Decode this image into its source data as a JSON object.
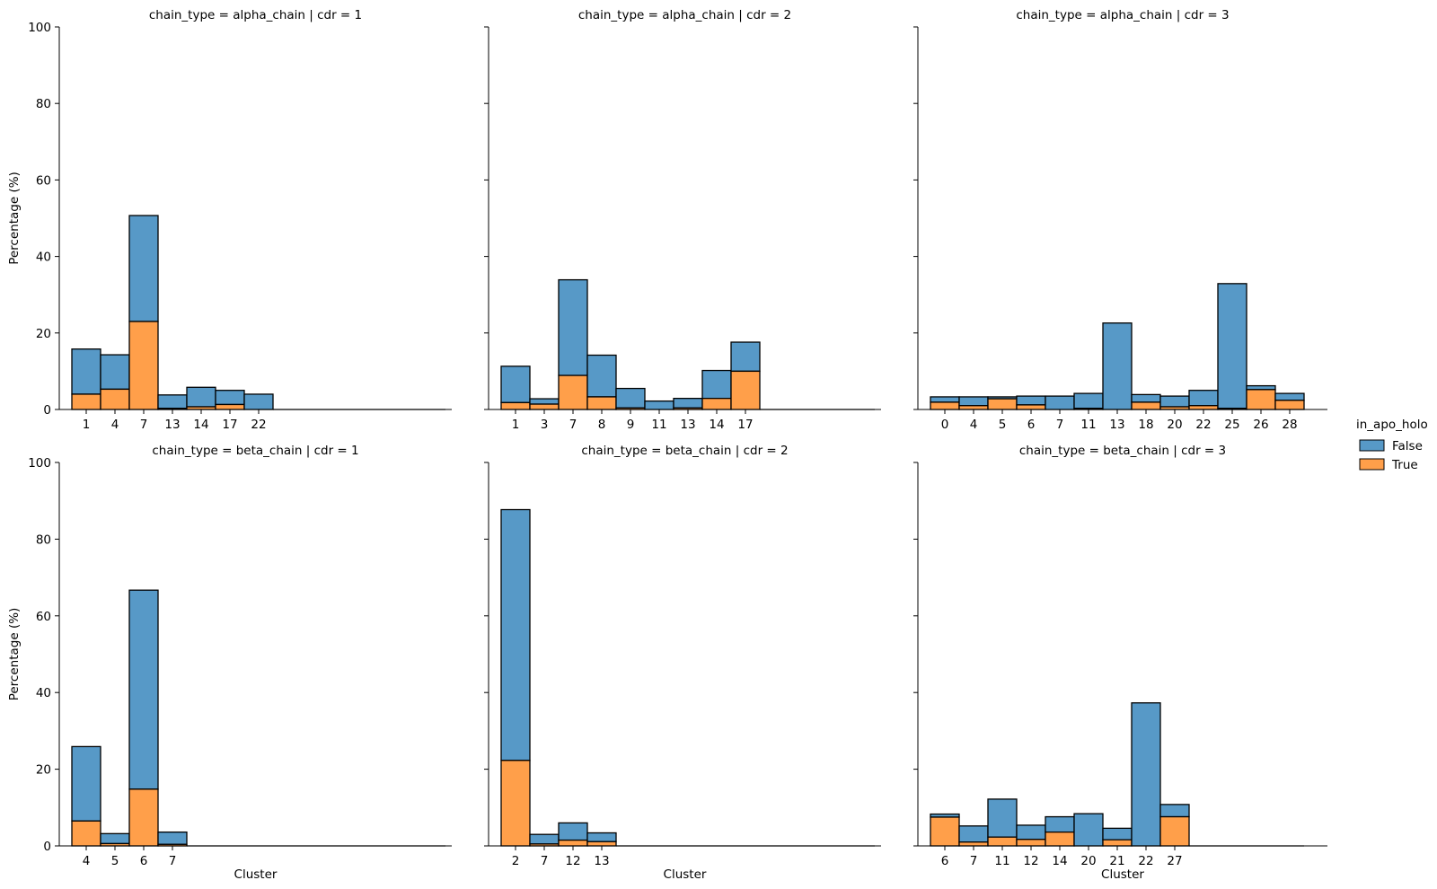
{
  "legend": {
    "title": "in_apo_holo",
    "entries": [
      {
        "label": "False",
        "color": "#5799c7"
      },
      {
        "label": "True",
        "color": "#ff9f4a"
      }
    ],
    "placement": "right-center"
  },
  "chart_data": [
    {
      "type": "bar",
      "stacked": true,
      "title": "chain_type = alpha_chain | cdr = 1",
      "xlabel": "",
      "ylabel": "Percentage (%)",
      "ylim": [
        0,
        100
      ],
      "yticks": [
        0,
        20,
        40,
        60,
        80,
        100
      ],
      "categories": [
        "1",
        "4",
        "7",
        "13",
        "14",
        "17",
        "22"
      ],
      "empty_slots": 6,
      "series": [
        {
          "name": "True",
          "values": [
            4.0,
            5.3,
            23.0,
            0.3,
            0.7,
            1.3,
            0.0
          ]
        },
        {
          "name": "False",
          "values": [
            11.8,
            9.0,
            27.7,
            3.5,
            5.1,
            3.7,
            4.0
          ]
        }
      ]
    },
    {
      "type": "bar",
      "stacked": true,
      "title": "chain_type = alpha_chain | cdr = 2",
      "xlabel": "",
      "ylabel": "",
      "ylim": [
        0,
        100
      ],
      "yticks": [
        0,
        20,
        40,
        60,
        80,
        100
      ],
      "categories": [
        "1",
        "3",
        "7",
        "8",
        "9",
        "11",
        "13",
        "14",
        "17"
      ],
      "empty_slots": 4,
      "series": [
        {
          "name": "True",
          "values": [
            1.8,
            1.4,
            8.9,
            3.3,
            0.4,
            0.0,
            0.4,
            2.9,
            10.0
          ]
        },
        {
          "name": "False",
          "values": [
            9.5,
            1.4,
            25.0,
            10.9,
            5.1,
            2.2,
            2.5,
            7.3,
            7.6
          ]
        }
      ]
    },
    {
      "type": "bar",
      "stacked": true,
      "title": "chain_type = alpha_chain | cdr = 3",
      "xlabel": "",
      "ylabel": "",
      "ylim": [
        0,
        100
      ],
      "yticks": [
        0,
        20,
        40,
        60,
        80,
        100
      ],
      "categories": [
        "0",
        "4",
        "5",
        "6",
        "7",
        "11",
        "13",
        "18",
        "20",
        "22",
        "25",
        "26",
        "28"
      ],
      "empty_slots": 0,
      "series": [
        {
          "name": "True",
          "values": [
            1.9,
            1.0,
            2.8,
            1.2,
            0.0,
            0.3,
            0.0,
            1.9,
            0.7,
            1.0,
            0.3,
            5.2,
            2.4
          ]
        },
        {
          "name": "False",
          "values": [
            1.4,
            2.3,
            0.5,
            2.3,
            3.5,
            3.9,
            22.6,
            2.0,
            2.8,
            4.0,
            32.6,
            1.0,
            1.8
          ]
        }
      ]
    },
    {
      "type": "bar",
      "stacked": true,
      "title": "chain_type = beta_chain | cdr = 1",
      "xlabel": "Cluster",
      "ylabel": "Percentage (%)",
      "ylim": [
        0,
        100
      ],
      "yticks": [
        0,
        20,
        40,
        60,
        80,
        100
      ],
      "categories": [
        "4",
        "5",
        "6",
        "7"
      ],
      "empty_slots": 9,
      "series": [
        {
          "name": "True",
          "values": [
            6.5,
            0.6,
            14.8,
            0.4
          ]
        },
        {
          "name": "False",
          "values": [
            19.4,
            2.6,
            51.9,
            3.2
          ]
        }
      ]
    },
    {
      "type": "bar",
      "stacked": true,
      "title": "chain_type = beta_chain | cdr = 2",
      "xlabel": "Cluster",
      "ylabel": "",
      "ylim": [
        0,
        100
      ],
      "yticks": [
        0,
        20,
        40,
        60,
        80,
        100
      ],
      "categories": [
        "2",
        "7",
        "12",
        "13"
      ],
      "empty_slots": 9,
      "series": [
        {
          "name": "True",
          "values": [
            22.3,
            0.5,
            1.5,
            1.1
          ]
        },
        {
          "name": "False",
          "values": [
            65.4,
            2.5,
            4.5,
            2.3
          ]
        }
      ]
    },
    {
      "type": "bar",
      "stacked": true,
      "title": "chain_type = beta_chain | cdr = 3",
      "xlabel": "Cluster",
      "ylabel": "",
      "ylim": [
        0,
        100
      ],
      "yticks": [
        0,
        20,
        40,
        60,
        80,
        100
      ],
      "categories": [
        "6",
        "7",
        "11",
        "12",
        "14",
        "20",
        "21",
        "22",
        "27"
      ],
      "empty_slots": 4,
      "series": [
        {
          "name": "True",
          "values": [
            7.5,
            1.0,
            2.3,
            1.7,
            3.6,
            0.0,
            1.6,
            0.0,
            7.6
          ]
        },
        {
          "name": "False",
          "values": [
            0.8,
            4.2,
            9.9,
            3.7,
            4.0,
            8.4,
            3.0,
            37.3,
            3.2
          ]
        }
      ]
    }
  ]
}
